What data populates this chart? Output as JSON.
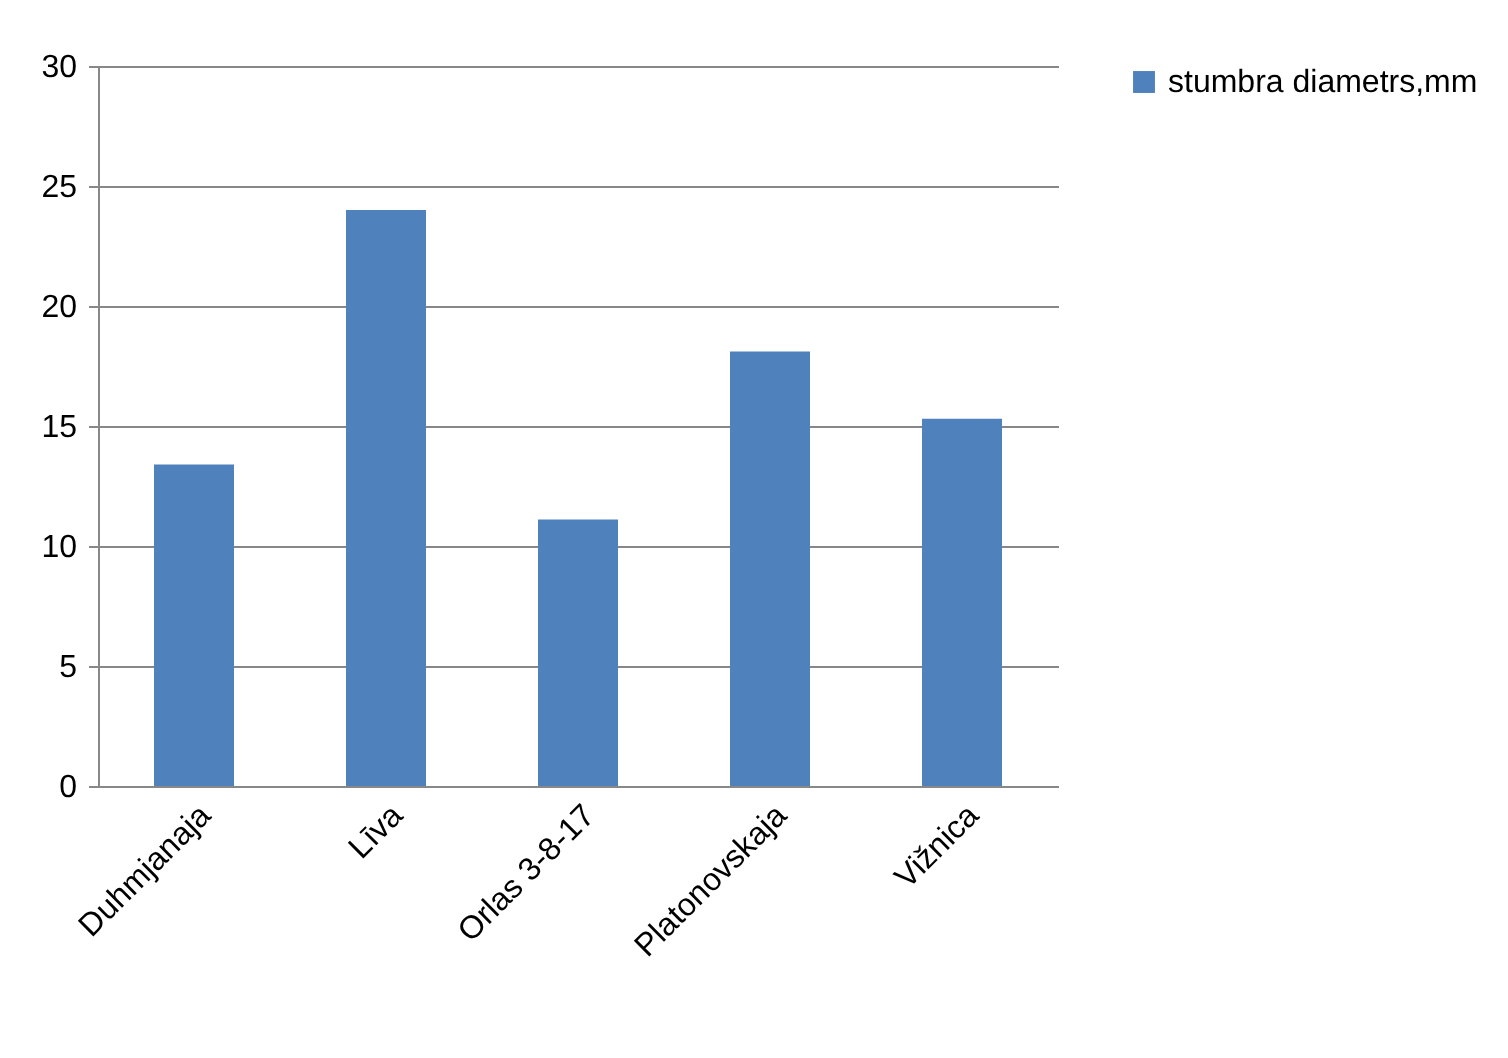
{
  "chart_data": {
    "type": "bar",
    "categories": [
      "Duhmjanaja",
      "Līva",
      "Orlas 3-8-17",
      "Platonovskaja",
      "Vižnica"
    ],
    "series": [
      {
        "name": "stumbra diametrs,mm",
        "color": "#4f81bd",
        "values": [
          13.4,
          24.0,
          11.1,
          18.1,
          15.3
        ]
      }
    ],
    "ylim": [
      0,
      30
    ],
    "yticks": [
      0,
      5,
      10,
      15,
      20,
      25,
      30
    ],
    "grid": "y",
    "legend": "right"
  }
}
